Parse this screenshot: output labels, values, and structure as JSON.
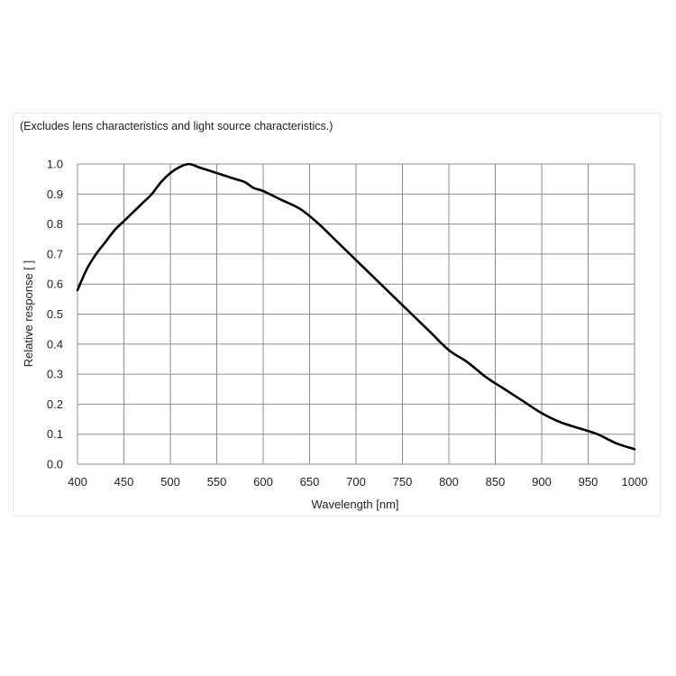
{
  "note": "(Excludes lens characteristics and light source characteristics.)",
  "chart_data": {
    "type": "line",
    "title": "",
    "xlabel": "Wavelength [nm]",
    "ylabel": "Relative response [ ]",
    "xlim": [
      400,
      1000
    ],
    "ylim": [
      0,
      1.0
    ],
    "grid": true,
    "x_ticks": [
      "400",
      "450",
      "500",
      "550",
      "600",
      "650",
      "700",
      "750",
      "800",
      "850",
      "900",
      "950",
      "1000"
    ],
    "y_ticks": [
      "0.0",
      "0.1",
      "0.2",
      "0.3",
      "0.4",
      "0.5",
      "0.6",
      "0.7",
      "0.8",
      "0.9",
      "1.0"
    ],
    "series": [
      {
        "x": [
          400,
          410,
          420,
          430,
          440,
          450,
          460,
          470,
          480,
          490,
          500,
          510,
          520,
          530,
          540,
          550,
          560,
          570,
          580,
          590,
          600,
          620,
          640,
          660,
          680,
          700,
          720,
          740,
          760,
          780,
          800,
          820,
          840,
          860,
          880,
          900,
          920,
          940,
          960,
          980,
          1000
        ],
        "y": [
          0.58,
          0.65,
          0.7,
          0.74,
          0.78,
          0.81,
          0.84,
          0.87,
          0.9,
          0.94,
          0.97,
          0.99,
          1.0,
          0.99,
          0.98,
          0.97,
          0.96,
          0.95,
          0.94,
          0.92,
          0.91,
          0.88,
          0.85,
          0.8,
          0.74,
          0.68,
          0.62,
          0.56,
          0.5,
          0.44,
          0.38,
          0.34,
          0.29,
          0.25,
          0.21,
          0.17,
          0.14,
          0.12,
          0.1,
          0.07,
          0.05
        ]
      }
    ]
  }
}
